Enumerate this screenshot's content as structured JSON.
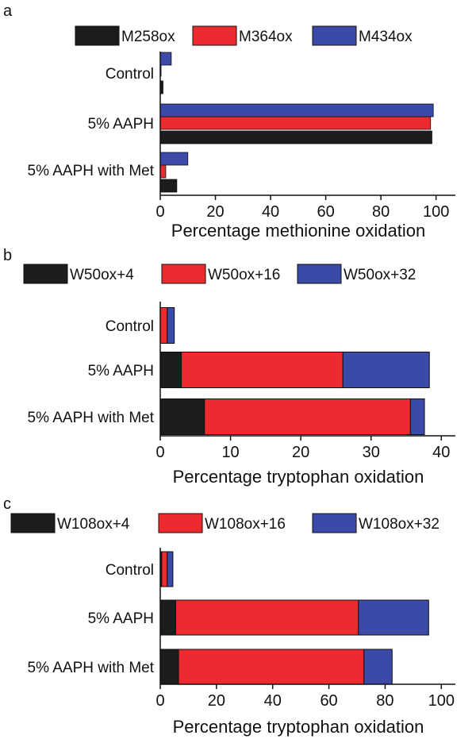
{
  "colors": {
    "black": "#1c1c1c",
    "red": "#ed2a2f",
    "blue": "#3a4aa6"
  },
  "chart_data": [
    {
      "panel_label": "a",
      "type": "bar",
      "orientation": "horizontal",
      "stacked": false,
      "categories": [
        "Control",
        "5% AAPH",
        "5% AAPH with Met"
      ],
      "series": [
        {
          "name": "M258ox",
          "color": "#1c1c1c",
          "values": [
            1,
            98.5,
            6
          ]
        },
        {
          "name": "M364ox",
          "color": "#ed2a2f",
          "values": [
            0.3,
            98,
            2
          ]
        },
        {
          "name": "M434ox",
          "color": "#3a4aa6",
          "values": [
            4,
            99,
            10
          ]
        }
      ],
      "xlim": [
        0,
        107
      ],
      "xticks": [
        0,
        20,
        40,
        60,
        80,
        100
      ],
      "xlabel": "Percentage methionine oxidation",
      "legend": "top"
    },
    {
      "panel_label": "b",
      "type": "bar",
      "orientation": "horizontal",
      "stacked": true,
      "categories": [
        "Control",
        "5% AAPH",
        "5% AAPH with Met"
      ],
      "series": [
        {
          "name": "W50ox+4",
          "color": "#1c1c1c",
          "values": [
            0,
            3,
            6.3
          ]
        },
        {
          "name": "W50ox+16",
          "color": "#ed2a2f",
          "values": [
            1,
            23,
            29.3
          ]
        },
        {
          "name": "W50ox+32",
          "color": "#3a4aa6",
          "values": [
            1,
            12.3,
            2
          ]
        }
      ],
      "xlim": [
        0,
        42
      ],
      "xticks": [
        0,
        10,
        20,
        30,
        40
      ],
      "xlabel": "Percentage tryptophan oxidation",
      "legend": "top"
    },
    {
      "panel_label": "c",
      "type": "bar",
      "orientation": "horizontal",
      "stacked": true,
      "categories": [
        "Control",
        "5% AAPH",
        "5% AAPH with Met"
      ],
      "series": [
        {
          "name": "W108ox+4",
          "color": "#1c1c1c",
          "values": [
            0.5,
            5.5,
            6.5
          ]
        },
        {
          "name": "W108ox+16",
          "color": "#ed2a2f",
          "values": [
            2,
            65,
            66
          ]
        },
        {
          "name": "W108ox+32",
          "color": "#3a4aa6",
          "values": [
            2,
            25,
            10
          ]
        }
      ],
      "xlim": [
        0,
        105
      ],
      "xticks": [
        0,
        20,
        40,
        60,
        80,
        100
      ],
      "xlabel": "Percentage tryptophan oxidation",
      "legend": "top"
    }
  ]
}
